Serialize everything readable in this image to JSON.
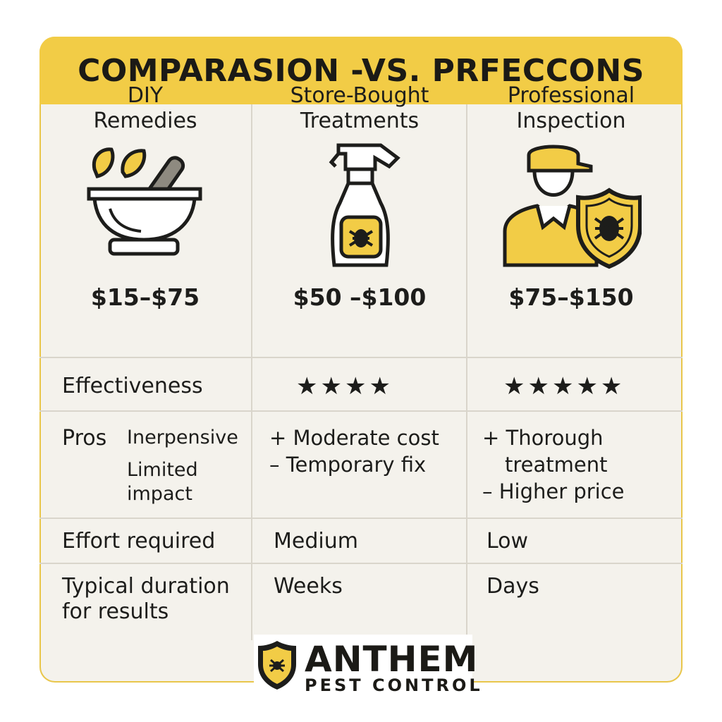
{
  "title": "COMPARASION -VS. PRFECCONS",
  "columns": [
    {
      "heading_line1": "DIY",
      "heading_line2": "Remedies",
      "icon": "mortar-pestle-icon",
      "price": "$15–$75"
    },
    {
      "heading_line1": "Store-Bought",
      "heading_line2": "Treatments",
      "icon": "spray-bottle-icon",
      "price": "$50 –$100"
    },
    {
      "heading_line1": "Professional",
      "heading_line2": "Inspection",
      "icon": "pest-inspector-icon",
      "price": "$75–$150"
    }
  ],
  "rows": {
    "effectiveness": {
      "label": "Effectiveness",
      "store_rating": 4,
      "store_stars": "★★★★",
      "pro_rating": 5,
      "pro_stars": "★★★★★"
    },
    "pros": {
      "label": "Pros",
      "diy_line1": "Inerpensive",
      "diy_line2": "Limited",
      "diy_line3": "impact",
      "store_line1": "+ Moderate cost",
      "store_line2": "– Temporary fix",
      "pro_line1": "+ Thorough",
      "pro_line2": "treatment",
      "pro_line3": "– Higher price"
    },
    "effort": {
      "label": "Effort required",
      "store": "Medium",
      "pro": "Low"
    },
    "duration": {
      "label_line1": "Typical duration",
      "label_line2": "for results",
      "store": "Weeks",
      "pro": "Days"
    }
  },
  "brand": {
    "name": "ANTHEM",
    "sub": "PEST CONTROL"
  },
  "colors": {
    "accent": "#f2cc46",
    "card": "#f4f2ec",
    "text": "#1d1d1b"
  }
}
